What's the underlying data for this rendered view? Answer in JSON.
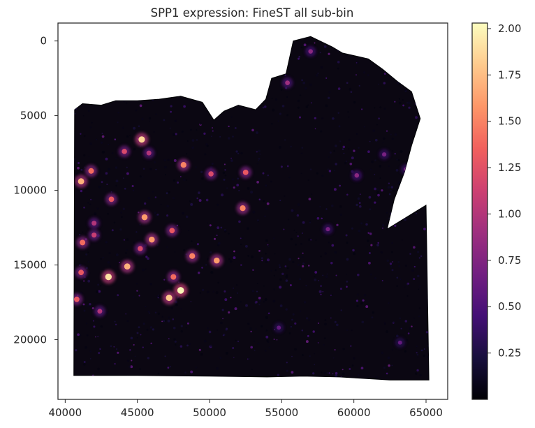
{
  "chart_data": {
    "type": "heatmap",
    "title": "SPP1 expression: FineST all sub-bin",
    "xlabel": "",
    "ylabel": "",
    "xlim": [
      39500,
      66500
    ],
    "ylim": [
      24000,
      -1200
    ],
    "y_inverted": true,
    "grid": false,
    "x_ticks": [
      40000,
      45000,
      50000,
      55000,
      60000,
      65000
    ],
    "x_tick_labels": [
      "40000",
      "45000",
      "50000",
      "55000",
      "60000",
      "65000"
    ],
    "y_ticks": [
      0,
      5000,
      10000,
      15000,
      20000
    ],
    "y_tick_labels": [
      "0",
      "5000",
      "10000",
      "15000",
      "20000"
    ],
    "colormap": "magma",
    "colormap_stops": [
      "#000004",
      "#180f3d",
      "#440f76",
      "#721f81",
      "#9e2f7f",
      "#cd4071",
      "#f1605d",
      "#fd9668",
      "#feca8d",
      "#fcfdbf"
    ],
    "colorbar": {
      "range": [
        0.0,
        2.03
      ],
      "ticks": [
        0.25,
        0.5,
        0.75,
        1.0,
        1.25,
        1.5,
        1.75,
        2.0
      ],
      "tick_labels": [
        "0.25",
        "0.50",
        "0.75",
        "1.00",
        "1.25",
        "1.50",
        "1.75",
        "2.00"
      ]
    },
    "tissue_outline": [
      [
        40600,
        22400
      ],
      [
        40650,
        4600
      ],
      [
        41200,
        4200
      ],
      [
        42500,
        4300
      ],
      [
        43500,
        4000
      ],
      [
        45000,
        4000
      ],
      [
        46500,
        3900
      ],
      [
        48000,
        3700
      ],
      [
        49500,
        4100
      ],
      [
        50300,
        5300
      ],
      [
        51000,
        4700
      ],
      [
        52000,
        4300
      ],
      [
        53200,
        4600
      ],
      [
        53900,
        3900
      ],
      [
        54300,
        2500
      ],
      [
        55300,
        2200
      ],
      [
        55800,
        0
      ],
      [
        57000,
        -300
      ],
      [
        58500,
        400
      ],
      [
        59200,
        800
      ],
      [
        61000,
        1200
      ],
      [
        62000,
        1900
      ],
      [
        63000,
        2700
      ],
      [
        64000,
        3400
      ],
      [
        64600,
        5200
      ],
      [
        64000,
        7000
      ],
      [
        63500,
        8800
      ],
      [
        62800,
        10600
      ],
      [
        62300,
        12600
      ],
      [
        65000,
        11000
      ],
      [
        65200,
        22700
      ],
      [
        62500,
        22700
      ],
      [
        59000,
        22500
      ],
      [
        56500,
        22450
      ],
      [
        54000,
        22500
      ],
      [
        50000,
        22450
      ],
      [
        45000,
        22400
      ],
      [
        41000,
        22400
      ]
    ],
    "hotspots": [
      {
        "x": 45300,
        "y": 6600,
        "value": 1.85
      },
      {
        "x": 44100,
        "y": 7400,
        "value": 1.2
      },
      {
        "x": 45800,
        "y": 7500,
        "value": 1.0
      },
      {
        "x": 41100,
        "y": 9400,
        "value": 1.7
      },
      {
        "x": 41800,
        "y": 8700,
        "value": 1.4
      },
      {
        "x": 43200,
        "y": 10600,
        "value": 1.3
      },
      {
        "x": 48200,
        "y": 8300,
        "value": 1.5
      },
      {
        "x": 50100,
        "y": 8900,
        "value": 1.2
      },
      {
        "x": 52500,
        "y": 8800,
        "value": 1.3
      },
      {
        "x": 42000,
        "y": 12200,
        "value": 1.0
      },
      {
        "x": 45500,
        "y": 11800,
        "value": 1.6
      },
      {
        "x": 52300,
        "y": 11200,
        "value": 1.5
      },
      {
        "x": 47400,
        "y": 12700,
        "value": 1.3
      },
      {
        "x": 41200,
        "y": 13500,
        "value": 1.4
      },
      {
        "x": 42000,
        "y": 13000,
        "value": 1.1
      },
      {
        "x": 46000,
        "y": 13300,
        "value": 1.6
      },
      {
        "x": 45200,
        "y": 13900,
        "value": 1.2
      },
      {
        "x": 44300,
        "y": 15100,
        "value": 1.7
      },
      {
        "x": 48800,
        "y": 14400,
        "value": 1.5
      },
      {
        "x": 50500,
        "y": 14700,
        "value": 1.6
      },
      {
        "x": 43000,
        "y": 15800,
        "value": 1.9
      },
      {
        "x": 47500,
        "y": 15800,
        "value": 1.4
      },
      {
        "x": 41100,
        "y": 15500,
        "value": 1.3
      },
      {
        "x": 48000,
        "y": 16700,
        "value": 2.0
      },
      {
        "x": 47200,
        "y": 17200,
        "value": 1.8
      },
      {
        "x": 40800,
        "y": 17300,
        "value": 1.3
      },
      {
        "x": 42400,
        "y": 18100,
        "value": 1.0
      },
      {
        "x": 55400,
        "y": 2800,
        "value": 0.9
      },
      {
        "x": 57000,
        "y": 700,
        "value": 0.8
      },
      {
        "x": 60200,
        "y": 9000,
        "value": 0.8
      },
      {
        "x": 62100,
        "y": 7600,
        "value": 0.7
      },
      {
        "x": 63600,
        "y": 8600,
        "value": 0.7
      },
      {
        "x": 58200,
        "y": 12600,
        "value": 0.7
      },
      {
        "x": 54800,
        "y": 19200,
        "value": 0.6
      },
      {
        "x": 63200,
        "y": 20200,
        "value": 0.6
      }
    ]
  }
}
